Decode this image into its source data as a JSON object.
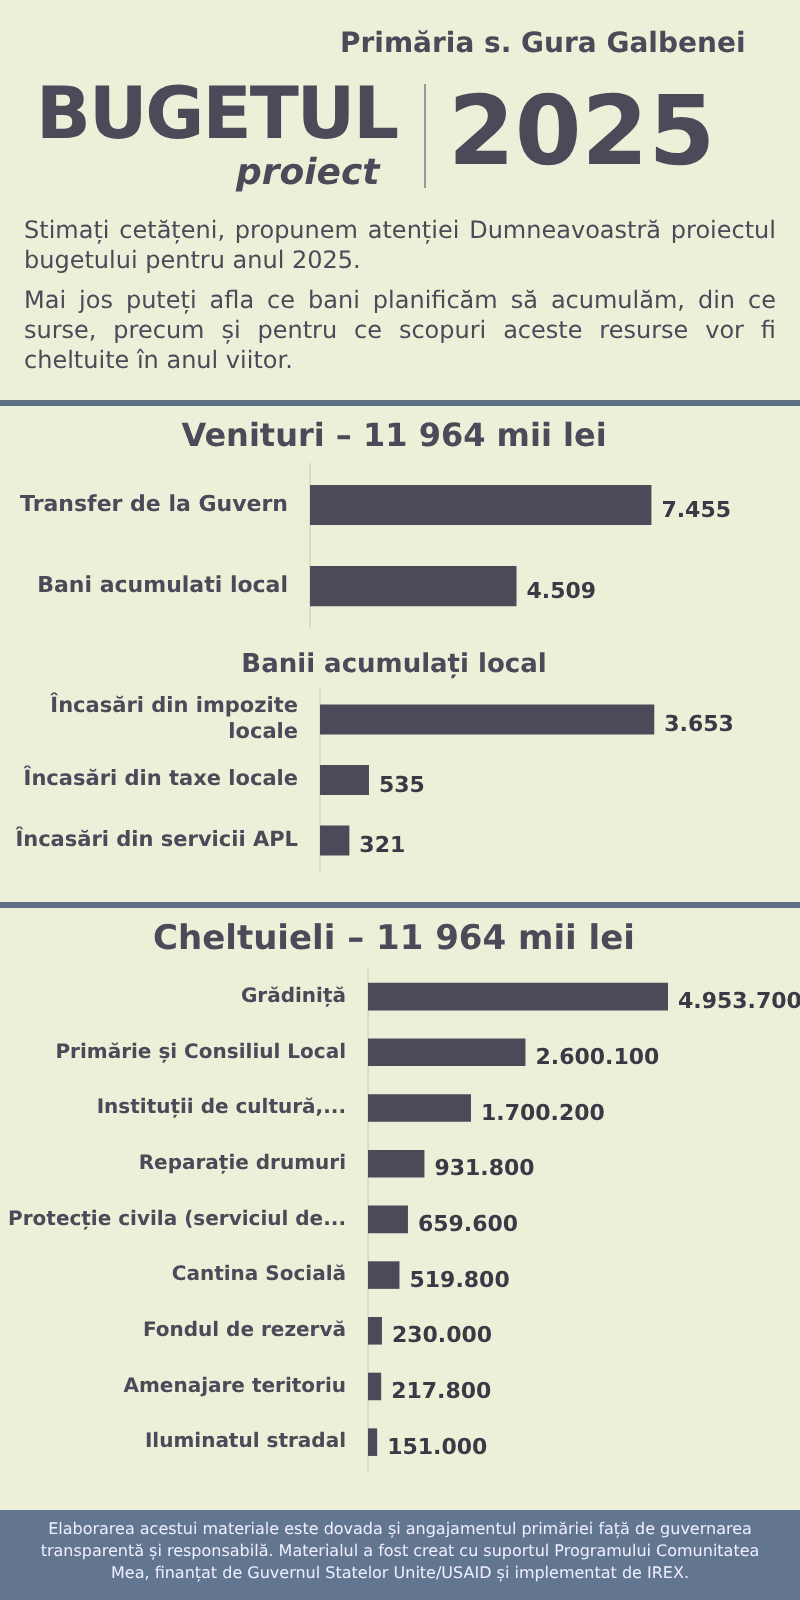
{
  "chart_data": [
    {
      "type": "other",
      "title": "Primăria s. Gura Galbenei",
      "annotations": [
        "BUGETUL",
        "proiect",
        "2025",
        "Stimați cetățeni, propunem atenției Dumneavoastră proiectul bugetului pentru anul 2025.",
        "Mai jos puteți afla ce bani planificăm să acumulăm, din ce surse, precum și pentru ce scopuri aceste resurse vor fi cheltuite în anul viitor."
      ]
    },
    {
      "type": "bar",
      "orientation": "horizontal",
      "title": "Venituri – 11 964 mii lei",
      "categories": [
        "Transfer de la Guvern",
        "Bani acumulati local"
      ],
      "values": [
        7455,
        4509
      ],
      "value_labels": [
        "7.455",
        "4.509"
      ],
      "color": "#4a4a58"
    },
    {
      "type": "bar",
      "orientation": "horizontal",
      "title": "Banii acumulați local",
      "categories": [
        "Încasări din impozite locale",
        "Încasări din taxe locale",
        "Încasări din servicii APL"
      ],
      "values": [
        3653,
        535,
        321
      ],
      "value_labels": [
        "3.653",
        "535",
        "321"
      ],
      "color": "#4a4a58"
    },
    {
      "type": "bar",
      "orientation": "horizontal",
      "title": "Cheltuieli – 11 964 mii lei",
      "categories": [
        "Grădiniță",
        "Primărie și Consiliul Local",
        "Instituții de cultură,...",
        "Reparație drumuri",
        "Protecție civila (serviciul de...",
        "Cantina Socială",
        "Fondul de rezervă",
        "Amenajare teritoriu",
        "Iluminatul stradal"
      ],
      "values": [
        4953700,
        2600100,
        1700200,
        931800,
        659600,
        519800,
        230000,
        217800,
        151000
      ],
      "value_labels": [
        "4.953.700",
        "2.600.100",
        "1.700.200",
        "931.800",
        "659.600",
        "519.800",
        "230.000",
        "217.800",
        "151.000"
      ],
      "color": "#4a4a58",
      "annotations": [
        "Elaborarea acestui materiale este dovada și angajamentul primăriei față de guvernarea transparentă și responsabilă. Materialul a fost creat cu suportul Programului Comunitatea Mea, finanțat de Guvernul Statelor Unite/USAID și implementat de IREX."
      ]
    }
  ]
}
